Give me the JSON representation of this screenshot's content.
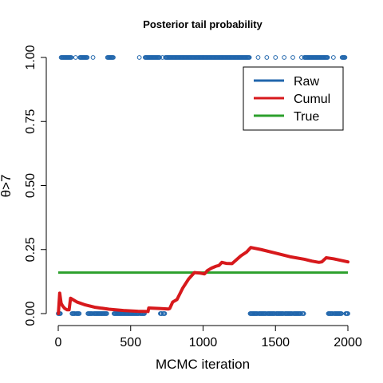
{
  "chart_data": {
    "type": "line",
    "title": "Posterior tail probability",
    "xlabel": "MCMC iteration",
    "ylabel": "θ>7",
    "xlim": [
      0,
      2000
    ],
    "ylim": [
      0,
      1
    ],
    "x_ticks": [
      "0",
      "500",
      "1000",
      "1500",
      "2000"
    ],
    "y_ticks": [
      "0.00",
      "0.25",
      "0.50",
      "0.75",
      "1.00"
    ],
    "x_tick_values": [
      0,
      500,
      1000,
      1500,
      2000
    ],
    "y_tick_values": [
      0,
      0.25,
      0.5,
      0.75,
      1.0
    ],
    "legend_position": "top-right",
    "series": [
      {
        "name": "Raw",
        "kind": "points",
        "color": "#2166ac",
        "ones_ranges": [
          [
            20,
            90
          ],
          [
            150,
            200
          ],
          [
            340,
            380
          ],
          [
            600,
            700
          ],
          [
            740,
            1320
          ],
          [
            1700,
            1860
          ],
          [
            1960,
            1980
          ]
        ],
        "ones_points": [
          120,
          240,
          560,
          720,
          1380,
          1440,
          1500,
          1560,
          1620,
          1680,
          1900
        ]
      },
      {
        "name": "Cumul",
        "kind": "line",
        "color": "#d7191c",
        "x": [
          1,
          10,
          20,
          30,
          45,
          60,
          75,
          85,
          100,
          130,
          180,
          250,
          350,
          450,
          550,
          620,
          625,
          700,
          760,
          770,
          790,
          820,
          860,
          900,
          940,
          980,
          1010,
          1030,
          1060,
          1090,
          1110,
          1130,
          1160,
          1200,
          1230,
          1260,
          1300,
          1330,
          1400,
          1500,
          1600,
          1700,
          1750,
          1800,
          1820,
          1850,
          1900,
          2000
        ],
        "y": [
          0.0,
          0.08,
          0.04,
          0.03,
          0.02,
          0.015,
          0.015,
          0.06,
          0.055,
          0.045,
          0.035,
          0.025,
          0.017,
          0.012,
          0.009,
          0.008,
          0.022,
          0.02,
          0.018,
          0.02,
          0.045,
          0.055,
          0.1,
          0.135,
          0.16,
          0.158,
          0.155,
          0.168,
          0.178,
          0.185,
          0.188,
          0.2,
          0.196,
          0.195,
          0.21,
          0.225,
          0.24,
          0.258,
          0.25,
          0.236,
          0.222,
          0.212,
          0.205,
          0.2,
          0.202,
          0.218,
          0.214,
          0.202
        ]
      },
      {
        "name": "True",
        "kind": "hline",
        "color": "#2ca02c",
        "y_value": 0.16
      }
    ]
  }
}
